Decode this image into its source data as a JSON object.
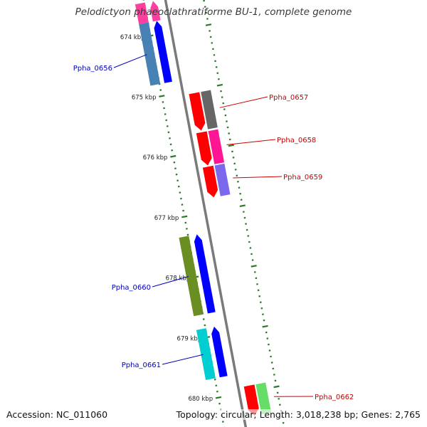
{
  "title": "Pelodictyon phaeoclathratiforme BU-1, complete genome",
  "accession": "Accession: NC_011060",
  "topology": "Topology: circular; Length: 3,018,238 bp; Genes: 2,765",
  "colors": {
    "backbone": "#7a7a7a",
    "tick": "#2a7a2a",
    "label_forward": "#cc0000",
    "label_reverse": "#0000bb"
  },
  "scale_ticks": [
    {
      "label": "674 kbp",
      "kbp": 674
    },
    {
      "label": "675 kbp",
      "kbp": 675
    },
    {
      "label": "676 kbp",
      "kbp": 676
    },
    {
      "label": "677 kbp",
      "kbp": 677
    },
    {
      "label": "678 kbp",
      "kbp": 678
    },
    {
      "label": "679 kbp",
      "kbp": 679
    },
    {
      "label": "680 kbp",
      "kbp": 680
    }
  ],
  "genes": [
    {
      "name": "",
      "strand": "reverse",
      "start_kbp": 673.45,
      "end_kbp": 673.78,
      "color": "#ff3fa0",
      "cog_color": "#ff3fa0"
    },
    {
      "name": "Ppha_0656",
      "strand": "reverse",
      "start_kbp": 673.78,
      "end_kbp": 674.8,
      "color": "#0000ff",
      "cog_color": "#4682b4"
    },
    {
      "name": "Ppha_0657",
      "strand": "forward",
      "start_kbp": 675.05,
      "end_kbp": 675.67,
      "color": "#ff0000",
      "cog_color": "#666666"
    },
    {
      "name": "Ppha_0658",
      "strand": "forward",
      "start_kbp": 675.7,
      "end_kbp": 676.25,
      "color": "#ff0000",
      "cog_color": "#ff1493"
    },
    {
      "name": "Ppha_0659",
      "strand": "forward",
      "start_kbp": 676.27,
      "end_kbp": 676.78,
      "color": "#ff0000",
      "cog_color": "#7b68ee"
    },
    {
      "name": "Ppha_0660",
      "strand": "reverse",
      "start_kbp": 677.32,
      "end_kbp": 678.62,
      "color": "#0000ff",
      "cog_color": "#6b8e23"
    },
    {
      "name": "Ppha_0661",
      "strand": "reverse",
      "start_kbp": 678.85,
      "end_kbp": 679.68,
      "color": "#0000ff",
      "cog_color": "#00ced1"
    },
    {
      "name": "Ppha_0662",
      "strand": "forward",
      "start_kbp": 679.9,
      "end_kbp": 680.4,
      "color": "#ff0000",
      "cog_color": "#66dd66"
    }
  ]
}
